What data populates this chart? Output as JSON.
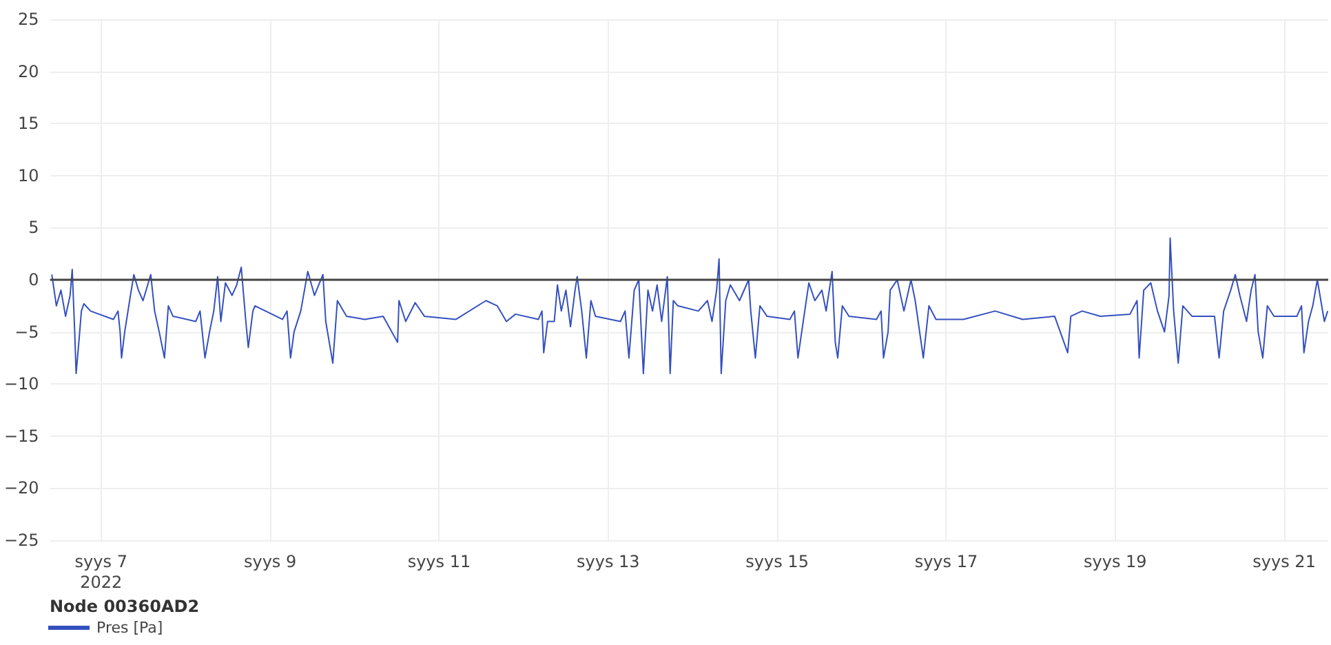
{
  "chart_data": {
    "type": "line",
    "legend_title": "Node 00360AD2",
    "legend": "bottom left",
    "grid": true,
    "marker": "none",
    "line_style": "solid",
    "xlim": [
      "2022-09-06T09:30",
      "2022-09-21T12:30"
    ],
    "xticks": [
      {
        "value": "2022-09-07",
        "label": "syys 7\n2022"
      },
      {
        "value": "2022-09-09",
        "label": "syys 9"
      },
      {
        "value": "2022-09-11",
        "label": "syys 11"
      },
      {
        "value": "2022-09-13",
        "label": "syys 13"
      },
      {
        "value": "2022-09-15",
        "label": "syys 15"
      },
      {
        "value": "2022-09-17",
        "label": "syys 17"
      },
      {
        "value": "2022-09-19",
        "label": "syys 19"
      },
      {
        "value": "2022-09-21",
        "label": "syys 21"
      }
    ],
    "ylim": [
      -25,
      25
    ],
    "yticks": [
      {
        "value": -25,
        "label": "−25"
      },
      {
        "value": -20,
        "label": "−20"
      },
      {
        "value": -15,
        "label": "−15"
      },
      {
        "value": -10,
        "label": "−10"
      },
      {
        "value": -5,
        "label": "−5"
      },
      0,
      5,
      10,
      15,
      20,
      25
    ],
    "ref_lines": [
      {
        "axis": "y",
        "value": 0,
        "color": "#444444"
      }
    ],
    "x": [
      "2022-09-06T10:00",
      "2022-09-06T11:18",
      "2022-09-06T12:36",
      "2022-09-06T13:54",
      "2022-09-06T15:12",
      "2022-09-06T15:48",
      "2022-09-06T16:30",
      "2022-09-06T16:54",
      "2022-09-06T17:48",
      "2022-09-06T18:24",
      "2022-09-06T19:06",
      "2022-09-06T21:00",
      "2022-09-07T03:30",
      "2022-09-07T04:48",
      "2022-09-07T05:24",
      "2022-09-07T05:48",
      "2022-09-07T06:42",
      "2022-09-07T08:06",
      "2022-09-07T09:18",
      "2022-09-07T10:36",
      "2022-09-07T11:54",
      "2022-09-07T14:06",
      "2022-09-07T15:12",
      "2022-09-07T16:30",
      "2022-09-07T18:00",
      "2022-09-07T19:06",
      "2022-09-07T20:24",
      "2022-09-08T02:54",
      "2022-09-08T04:06",
      "2022-09-08T05:30",
      "2022-09-08T06:48",
      "2022-09-08T08:00",
      "2022-09-08T09:06",
      "2022-09-08T10:00",
      "2022-09-08T11:18",
      "2022-09-08T13:12",
      "2022-09-08T14:30",
      "2022-09-08T15:48",
      "2022-09-08T17:06",
      "2022-09-08T17:48",
      "2022-09-08T19:06",
      "2022-09-08T19:42",
      "2022-09-09T03:30",
      "2022-09-09T04:48",
      "2022-09-09T05:48",
      "2022-09-09T06:48",
      "2022-09-09T08:42",
      "2022-09-09T10:42",
      "2022-09-09T12:36",
      "2022-09-09T15:00",
      "2022-09-09T15:48",
      "2022-09-09T17:48",
      "2022-09-09T19:06",
      "2022-09-09T21:42",
      "2022-09-10T02:54",
      "2022-09-10T08:06",
      "2022-09-10T12:12",
      "2022-09-10T12:36",
      "2022-09-10T14:30",
      "2022-09-10T17:12",
      "2022-09-10T19:48",
      "2022-09-11T04:48",
      "2022-09-11T13:18",
      "2022-09-11T16:30",
      "2022-09-11T19:06",
      "2022-09-11T21:42",
      "2022-09-12T04:12",
      "2022-09-12T05:12",
      "2022-09-12T05:42",
      "2022-09-12T06:48",
      "2022-09-12T08:42",
      "2022-09-12T09:36",
      "2022-09-12T10:42",
      "2022-09-12T12:00",
      "2022-09-12T13:18",
      "2022-09-12T14:36",
      "2022-09-12T15:12",
      "2022-09-12T16:30",
      "2022-09-12T17:48",
      "2022-09-12T19:06",
      "2022-09-12T20:24",
      "2022-09-13T03:30",
      "2022-09-13T04:48",
      "2022-09-13T05:54",
      "2022-09-13T07:24",
      "2022-09-13T08:42",
      "2022-09-13T10:00",
      "2022-09-13T11:18",
      "2022-09-13T12:36",
      "2022-09-13T13:54",
      "2022-09-13T15:12",
      "2022-09-13T16:48",
      "2022-09-13T17:36",
      "2022-09-13T18:30",
      "2022-09-13T19:48",
      "2022-09-14T01:36",
      "2022-09-14T04:12",
      "2022-09-14T05:30",
      "2022-09-14T06:48",
      "2022-09-14T07:30",
      "2022-09-14T08:06",
      "2022-09-14T09:24",
      "2022-09-14T10:42",
      "2022-09-14T13:18",
      "2022-09-14T15:54",
      "2022-09-14T16:30",
      "2022-09-14T17:48",
      "2022-09-14T19:06",
      "2022-09-14T21:06",
      "2022-09-15T03:36",
      "2022-09-15T04:54",
      "2022-09-15T05:54",
      "2022-09-15T07:24",
      "2022-09-15T09:00",
      "2022-09-15T10:42",
      "2022-09-15T12:42",
      "2022-09-15T13:54",
      "2022-09-15T15:36",
      "2022-09-15T16:30",
      "2022-09-15T17:12",
      "2022-09-15T18:30",
      "2022-09-15T20:24",
      "2022-09-16T04:12",
      "2022-09-16T05:30",
      "2022-09-16T06:12",
      "2022-09-16T07:30",
      "2022-09-16T08:06",
      "2022-09-16T10:06",
      "2022-09-16T12:00",
      "2022-09-16T14:00",
      "2022-09-16T15:12",
      "2022-09-16T17:30",
      "2022-09-16T19:06",
      "2022-09-16T21:06",
      "2022-09-17T04:54",
      "2022-09-17T13:54",
      "2022-09-17T21:42",
      "2022-09-18T06:48",
      "2022-09-18T10:30",
      "2022-09-18T11:24",
      "2022-09-18T14:36",
      "2022-09-18T19:48",
      "2022-09-19T04:12",
      "2022-09-19T06:12",
      "2022-09-19T06:48",
      "2022-09-19T08:06",
      "2022-09-19T10:06",
      "2022-09-19T12:00",
      "2022-09-19T14:00",
      "2022-09-19T15:18",
      "2022-09-19T15:36",
      "2022-09-19T16:36",
      "2022-09-19T17:54",
      "2022-09-19T19:12",
      "2022-09-19T21:48",
      "2022-09-20T04:12",
      "2022-09-20T05:30",
      "2022-09-20T06:48",
      "2022-09-20T08:48",
      "2022-09-20T10:06",
      "2022-09-20T11:24",
      "2022-09-20T13:18",
      "2022-09-20T14:36",
      "2022-09-20T15:42",
      "2022-09-20T16:36",
      "2022-09-20T17:54",
      "2022-09-20T19:12",
      "2022-09-20T21:06",
      "2022-09-21T03:36",
      "2022-09-21T04:54",
      "2022-09-21T05:36",
      "2022-09-21T06:54",
      "2022-09-21T08:06",
      "2022-09-21T09:24",
      "2022-09-21T11:24",
      "2022-09-21T12:20"
    ],
    "series": [
      {
        "name": "Pres [Pa]",
        "color": "#3450c0",
        "values": [
          0.5,
          -2.5,
          -1,
          -3.5,
          -1.5,
          1,
          -5,
          -9,
          -5.5,
          -3,
          -2.3,
          -3,
          -3.8,
          -3,
          -5,
          -7.5,
          -5,
          -2,
          0.5,
          -1,
          -2,
          0.5,
          -3,
          -5,
          -7.5,
          -2.5,
          -3.5,
          -4,
          -3,
          -7.5,
          -5,
          -3,
          0.3,
          -4,
          -0.3,
          -1.5,
          -0.5,
          1.2,
          -4,
          -6.5,
          -3,
          -2.5,
          -3.8,
          -3,
          -7.5,
          -5,
          -3,
          0.8,
          -1.5,
          0.5,
          -4,
          -8,
          -2,
          -3.5,
          -3.8,
          -3.5,
          -6,
          -2,
          -4,
          -2.2,
          -3.5,
          -3.8,
          -2,
          -2.5,
          -4,
          -3.3,
          -3.8,
          -3,
          -7,
          -4,
          -4,
          -0.5,
          -3,
          -1,
          -4.5,
          -1,
          0.3,
          -3,
          -7.5,
          -2,
          -3.5,
          -4,
          -3,
          -7.5,
          -1,
          0,
          -9,
          -1,
          -3,
          -0.5,
          -4,
          0.3,
          -9,
          -2,
          -2.5,
          -3,
          -2,
          -4,
          -1,
          2,
          -9,
          -2,
          -0.5,
          -2,
          0,
          -3,
          -7.5,
          -2.5,
          -3.5,
          -3.8,
          -3,
          -7.5,
          -4,
          -0.3,
          -2,
          -1,
          -3,
          0.8,
          -6,
          -7.5,
          -2.5,
          -3.5,
          -3.8,
          -3,
          -7.5,
          -5,
          -1,
          0,
          -3,
          0,
          -2,
          -7.5,
          -2.5,
          -3.8,
          -3.8,
          -3,
          -3.8,
          -3.5,
          -7,
          -3.5,
          -3,
          -3.5,
          -3.3,
          -2,
          -7.5,
          -1,
          -0.3,
          -3,
          -5,
          -1.5,
          4,
          -3,
          -8,
          -2.5,
          -3.5,
          -3.5,
          -7.5,
          -3,
          -1,
          0.5,
          -1.5,
          -4,
          -1,
          0.5,
          -5,
          -7.5,
          -2.5,
          -3.5,
          -3.5,
          -2.5,
          -7,
          -4,
          -2.5,
          0,
          -4,
          -3
        ]
      }
    ]
  }
}
